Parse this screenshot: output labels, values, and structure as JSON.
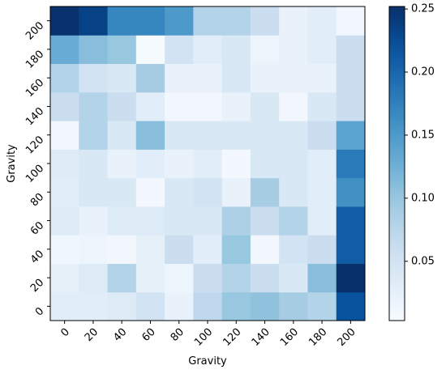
{
  "chart_data": {
    "type": "heatmap",
    "title": "",
    "xlabel": "Gravity",
    "ylabel": "Gravity",
    "x_categories": [
      "0",
      "20",
      "40",
      "60",
      "80",
      "100",
      "120",
      "140",
      "160",
      "180",
      "200"
    ],
    "y_categories": [
      "0",
      "20",
      "40",
      "60",
      "80",
      "100",
      "120",
      "140",
      "160",
      "180",
      "200"
    ],
    "values": [
      [
        0.03,
        0.03,
        0.035,
        0.05,
        0.02,
        0.07,
        0.1,
        0.105,
        0.09,
        0.08,
        0.22
      ],
      [
        0.025,
        0.035,
        0.08,
        0.025,
        0.015,
        0.06,
        0.08,
        0.06,
        0.04,
        0.11,
        0.26
      ],
      [
        0.012,
        0.015,
        0.01,
        0.025,
        0.06,
        0.03,
        0.1,
        0.01,
        0.05,
        0.06,
        0.21
      ],
      [
        0.035,
        0.02,
        0.035,
        0.035,
        0.04,
        0.04,
        0.085,
        0.06,
        0.08,
        0.03,
        0.21
      ],
      [
        0.03,
        0.04,
        0.04,
        0.008,
        0.04,
        0.05,
        0.02,
        0.09,
        0.04,
        0.03,
        0.16
      ],
      [
        0.035,
        0.04,
        0.02,
        0.03,
        0.02,
        0.03,
        0.008,
        0.04,
        0.04,
        0.03,
        0.18
      ],
      [
        0.01,
        0.08,
        0.04,
        0.11,
        0.04,
        0.04,
        0.04,
        0.04,
        0.04,
        0.06,
        0.14
      ],
      [
        0.06,
        0.08,
        0.06,
        0.03,
        0.01,
        0.01,
        0.02,
        0.04,
        0.01,
        0.04,
        0.06
      ],
      [
        0.08,
        0.05,
        0.04,
        0.09,
        0.02,
        0.02,
        0.04,
        0.02,
        0.02,
        0.02,
        0.06
      ],
      [
        0.13,
        0.11,
        0.1,
        0.005,
        0.05,
        0.03,
        0.04,
        0.015,
        0.02,
        0.03,
        0.06
      ],
      [
        0.25,
        0.235,
        0.17,
        0.17,
        0.15,
        0.08,
        0.08,
        0.06,
        0.02,
        0.03,
        0.01
      ]
    ],
    "value_range": [
      0.003,
      0.252
    ],
    "colormap": "Blues",
    "colorbar_ticks": [
      "0.05",
      "0.10",
      "0.15",
      "0.20",
      "0.25"
    ],
    "colorbar_tick_values": [
      0.05,
      0.1,
      0.15,
      0.2,
      0.25
    ],
    "grid": false
  }
}
